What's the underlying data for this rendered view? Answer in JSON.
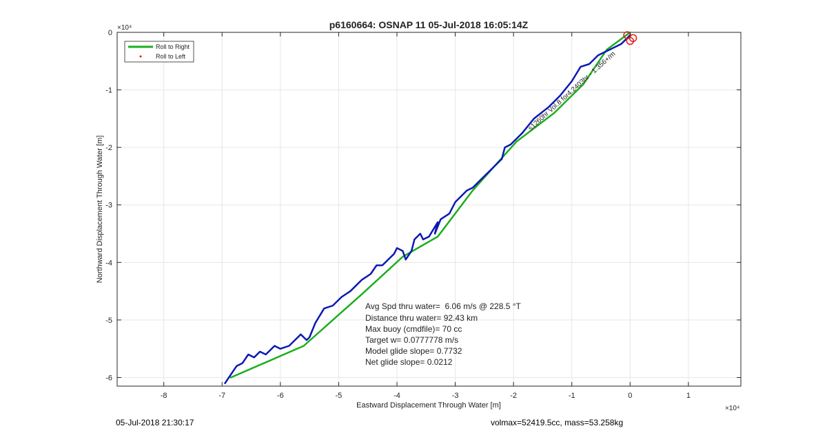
{
  "chart_data": {
    "type": "line",
    "title": "p6160664: OSNAP 11 05-Jul-2018 16:05:14Z",
    "xlabel": "Eastward Displacement Through Water [m]",
    "ylabel": "Northward Displacement Through Water [m]",
    "x_exponent_label": "×10⁴",
    "y_exponent_label": "×10⁴",
    "xlim": [
      -8.8,
      1.9
    ],
    "ylim": [
      -6.15,
      0
    ],
    "xticks": [
      -8,
      -7,
      -6,
      -5,
      -4,
      -3,
      -2,
      -1,
      0,
      1
    ],
    "yticks": [
      0,
      -1,
      -2,
      -3,
      -4,
      -5,
      -6
    ],
    "xtick_labels": [
      "-8",
      "-7",
      "-6",
      "-5",
      "-4",
      "-3",
      "-2",
      "-1",
      "0",
      "1"
    ],
    "ytick_labels": [
      "0",
      "-1",
      "-2",
      "-3",
      "-4",
      "-5",
      "-6"
    ],
    "grid": true,
    "legend_position": "top-left",
    "legend": [
      {
        "label": "Roll to Right",
        "color": "#1bae1b",
        "marker": "line"
      },
      {
        "label": "Roll to Left",
        "color": "#e41a1a",
        "marker": "dot"
      }
    ],
    "series": [
      {
        "name": "Roll to Right",
        "color": "#1bae1b",
        "x": [
          0,
          -0.4,
          -0.8,
          -1.3,
          -1.95,
          -2.7,
          -3.3,
          -3.9,
          -4.6,
          -5.6,
          -6.85
        ],
        "y": [
          0,
          -0.3,
          -0.9,
          -1.4,
          -1.9,
          -2.75,
          -3.55,
          -3.9,
          -4.55,
          -5.45,
          -6.0
        ]
      },
      {
        "name": "",
        "color": "#0b18b4",
        "x": [
          0,
          -0.15,
          -0.35,
          -0.55,
          -0.7,
          -0.85,
          -1.0,
          -1.2,
          -1.4,
          -1.65,
          -1.85,
          -1.95,
          -2.05,
          -2.15,
          -2.2,
          -2.4,
          -2.55,
          -2.7,
          -2.8,
          -3.0,
          -3.1,
          -3.25,
          -3.35,
          -3.3,
          -3.45,
          -3.55,
          -3.6,
          -3.7,
          -3.75,
          -3.85,
          -3.9,
          -4.0,
          -4.05,
          -4.15,
          -4.25,
          -4.35,
          -4.45,
          -4.6,
          -4.7,
          -4.8,
          -4.95,
          -5.1,
          -5.25,
          -5.4,
          -5.5,
          -5.55,
          -5.65,
          -5.75,
          -5.85,
          -6.0,
          -6.1,
          -6.25,
          -6.35,
          -6.45,
          -6.55,
          -6.65,
          -6.75,
          -6.85,
          -6.95
        ],
        "y": [
          -0.05,
          -0.2,
          -0.3,
          -0.4,
          -0.55,
          -0.6,
          -0.85,
          -1.1,
          -1.3,
          -1.5,
          -1.75,
          -1.85,
          -1.95,
          -2.0,
          -2.2,
          -2.4,
          -2.55,
          -2.7,
          -2.75,
          -2.95,
          -3.15,
          -3.25,
          -3.5,
          -3.3,
          -3.55,
          -3.6,
          -3.5,
          -3.6,
          -3.8,
          -3.95,
          -3.8,
          -3.75,
          -3.85,
          -3.95,
          -4.05,
          -4.05,
          -4.2,
          -4.3,
          -4.4,
          -4.5,
          -4.6,
          -4.75,
          -4.8,
          -5.05,
          -5.3,
          -5.35,
          -5.25,
          -5.35,
          -5.45,
          -5.5,
          -5.45,
          -5.6,
          -5.55,
          -5.65,
          -5.6,
          -5.75,
          -5.8,
          -5.95,
          -6.1
        ]
      },
      {
        "name": "Roll to Left",
        "color": "#e41a1a",
        "x": [
          0.0,
          -0.05,
          0.05
        ],
        "y": [
          -0.15,
          -0.05,
          -0.1
        ]
      }
    ],
    "annotations": [
      "Avg Spd thru water=  6.06 m/s @ 228.5 °T",
      "Distance thru water= 92.43 km",
      "Max buoy (cmdfile)= 70 cc",
      "Target w= 0.0777778 m/s",
      "Model glide slope= 0.7732",
      "Net glide slope= 0.0212"
    ],
    "path_label": "s1260hr Vol.8 for4.2403hr - 1.356+/m"
  },
  "footer": {
    "left": "05-Jul-2018 21:30:17",
    "right": "volmax=52419.5cc, mass=53.258kg"
  }
}
